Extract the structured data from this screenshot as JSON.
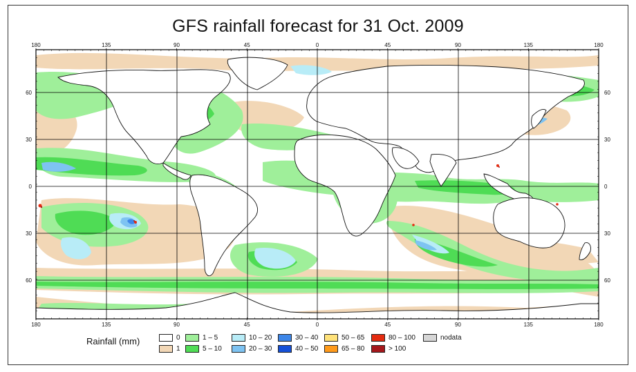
{
  "title": "GFS rainfall forecast for 31 Oct. 2009",
  "map": {
    "top_ticks": [
      "180",
      "135",
      "90",
      "45",
      "0",
      "45",
      "90",
      "135",
      "180"
    ],
    "bottom_ticks": [
      "180",
      "135",
      "90",
      "45",
      "0",
      "45",
      "90",
      "135",
      "180"
    ],
    "left_ticks": [
      "60",
      "30",
      "0",
      "30",
      "60"
    ],
    "right_ticks": [
      "60",
      "30",
      "0",
      "30",
      "60"
    ]
  },
  "legend": {
    "label": "Rainfall (mm)",
    "items": [
      {
        "text": "0",
        "color": "#ffffff"
      },
      {
        "text": "1",
        "color": "#f2d7b6"
      },
      {
        "text": "1 – 5",
        "color": "#9fef9a"
      },
      {
        "text": "5 – 10",
        "color": "#4fdc55"
      },
      {
        "text": "10 – 20",
        "color": "#b8ecf7"
      },
      {
        "text": "20 – 30",
        "color": "#7ec3f2"
      },
      {
        "text": "30 – 40",
        "color": "#3d86e8"
      },
      {
        "text": "40 – 50",
        "color": "#1450d8"
      },
      {
        "text": "50 – 65",
        "color": "#ffe27a"
      },
      {
        "text": "65 – 80",
        "color": "#ff9a1a"
      },
      {
        "text": "80 – 100",
        "color": "#e42b10"
      },
      {
        "text": "> 100",
        "color": "#a5171b"
      },
      {
        "text": "nodata",
        "color": "#d6d6d6"
      }
    ]
  }
}
